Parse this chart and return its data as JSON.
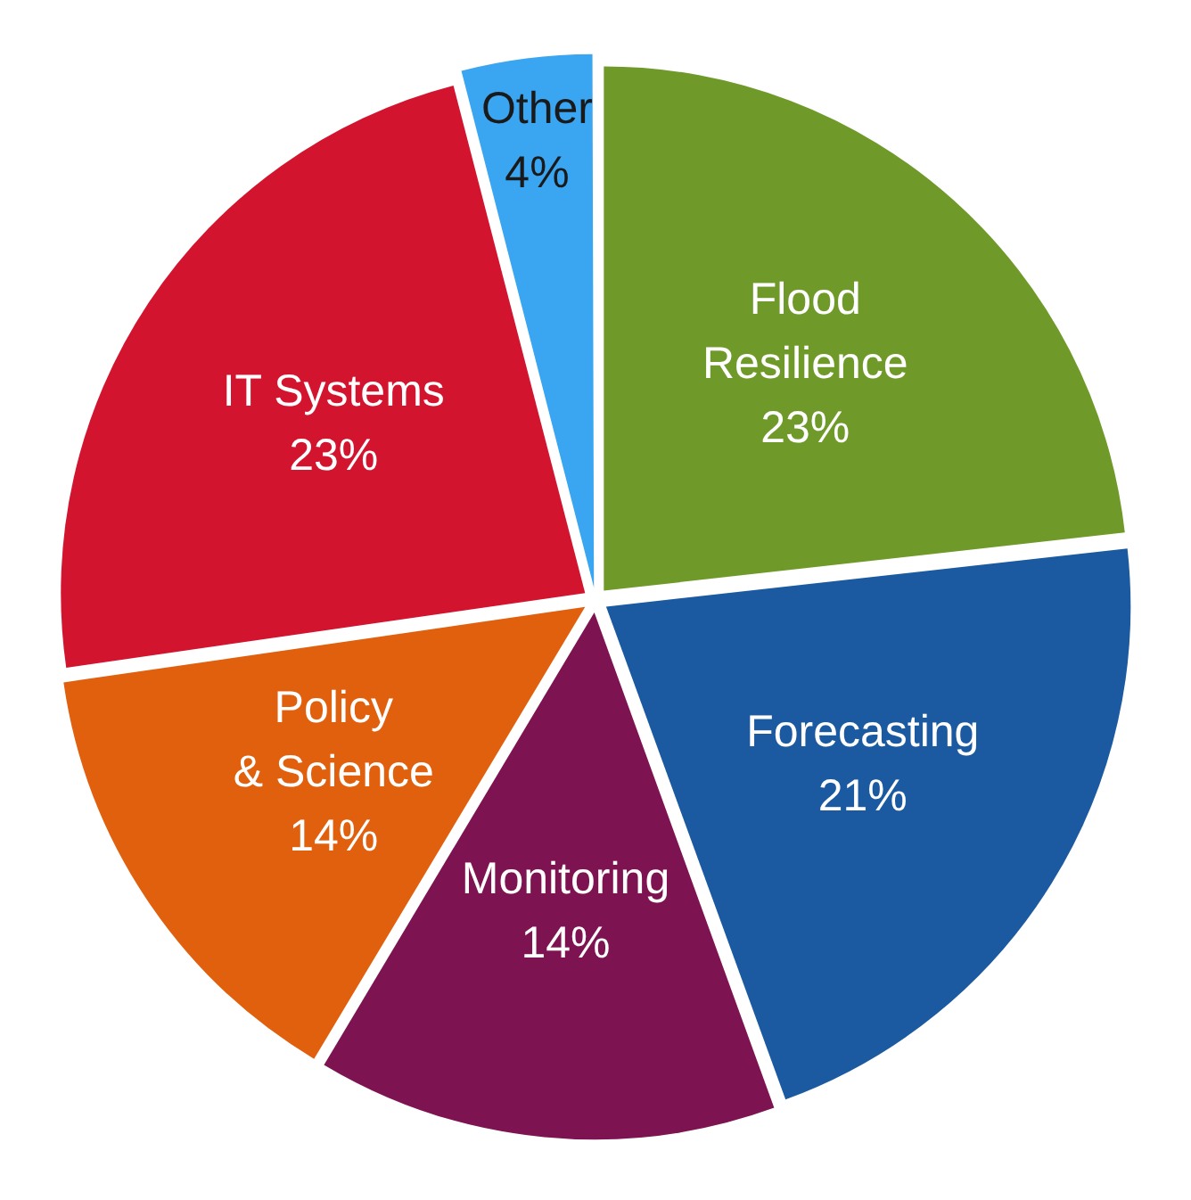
{
  "chart_data": {
    "type": "pie",
    "categories": [
      "Flood Resilience",
      "Forecasting",
      "Monitoring",
      "Policy & Science",
      "IT Systems",
      "Other"
    ],
    "values": [
      23,
      21,
      14,
      14,
      23,
      4
    ],
    "colors": [
      "#6f9a2a",
      "#1b5aa0",
      "#7d1350",
      "#e0600e",
      "#d3142e",
      "#3aa6f2"
    ],
    "value_labels": [
      "23%",
      "21%",
      "14%",
      "14%",
      "23%",
      "4%"
    ]
  }
}
